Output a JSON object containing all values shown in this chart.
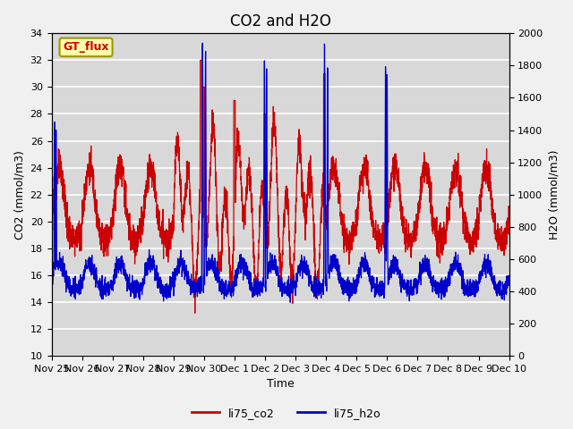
{
  "title": "CO2 and H2O",
  "xlabel": "Time",
  "ylabel_left": "CO2 (mmol/m3)",
  "ylabel_right": "H2O (mmol/m3)",
  "ylim_left": [
    10,
    34
  ],
  "ylim_right": [
    0,
    2000
  ],
  "yticks_left": [
    10,
    12,
    14,
    16,
    18,
    20,
    22,
    24,
    26,
    28,
    30,
    32,
    34
  ],
  "yticks_right": [
    0,
    200,
    400,
    600,
    800,
    1000,
    1200,
    1400,
    1600,
    1800,
    2000
  ],
  "xtick_vals": [
    0,
    1,
    2,
    3,
    4,
    5,
    6,
    7,
    8,
    9,
    10,
    11,
    12,
    13,
    14,
    15
  ],
  "xtick_labels": [
    "Nov 25",
    "Nov 26",
    "Nov 27",
    "Nov 28",
    "Nov 29",
    "Nov 30",
    "Dec 1",
    "Dec 2",
    "Dec 3",
    "Dec 4",
    "Dec 5",
    "Dec 6",
    "Dec 7",
    "Dec 8",
    "Dec 9",
    "Dec 10"
  ],
  "color_co2": "#cc0000",
  "color_h2o": "#0000cc",
  "legend_co2": "li75_co2",
  "legend_h2o": "li75_h2o",
  "annotation_text": "GT_flux",
  "bg_color": "#f0f0f0",
  "plot_bg_color": "#d8d8d8",
  "grid_color": "#ffffff",
  "title_fontsize": 12,
  "axis_fontsize": 9,
  "tick_fontsize": 8,
  "legend_fontsize": 9,
  "linewidth_co2": 0.9,
  "linewidth_h2o": 0.9
}
